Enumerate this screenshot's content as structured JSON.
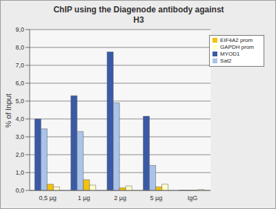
{
  "chart_data": {
    "type": "bar",
    "title": "ChIP using the Diagenode antibody against\nH3",
    "y_label": "% of Input",
    "categories": [
      "0,5 µg",
      "1 µg",
      "2 µg",
      "5 µg",
      "IgG"
    ],
    "series": [
      {
        "name": "MYOD1",
        "color": "#3a5aa6",
        "values": [
          4.0,
          5.3,
          7.75,
          4.15,
          0.02
        ]
      },
      {
        "name": "Sat2",
        "color": "#a9c3ea",
        "values": [
          3.45,
          3.3,
          4.9,
          1.4,
          0.02
        ]
      },
      {
        "name": "EIF4A2 prom",
        "color": "#f4c20d",
        "values": [
          0.35,
          0.6,
          0.15,
          0.2,
          0.02
        ]
      },
      {
        "name": "GAPDH prom",
        "color": "#ffffcc",
        "values": [
          0.2,
          0.3,
          0.25,
          0.35,
          0.05
        ]
      }
    ],
    "ylim": [
      0,
      9
    ],
    "yticks": [
      {
        "value": 0,
        "label": "0,0"
      },
      {
        "value": 1,
        "label": "1,0"
      },
      {
        "value": 2,
        "label": "2,0"
      },
      {
        "value": 3,
        "label": "3,0"
      },
      {
        "value": 4,
        "label": "4,0"
      },
      {
        "value": 5,
        "label": "5,0"
      },
      {
        "value": 6,
        "label": "6,0"
      },
      {
        "value": 7,
        "label": "7,0"
      },
      {
        "value": 8,
        "label": "8,0"
      },
      {
        "value": 9,
        "label": "9,0"
      }
    ],
    "grid": true,
    "legend": "upper right"
  }
}
